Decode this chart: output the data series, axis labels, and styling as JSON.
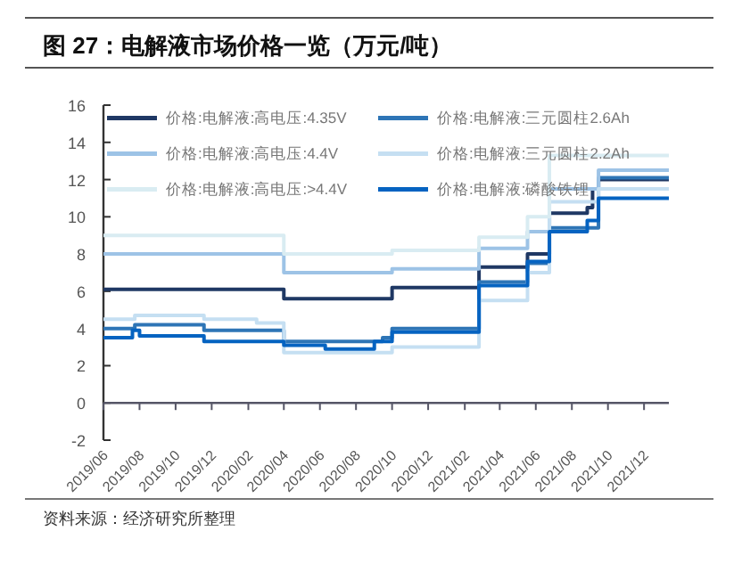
{
  "chart_data": {
    "type": "step",
    "title": "图 27：电解液市场价格一览（万元/吨）",
    "annotations": [
      "资料来源：经济研究所整理"
    ],
    "legend": "top left",
    "xlim": [
      "2019-06-01",
      "2022-01-12"
    ],
    "xticks": [
      {
        "value": "2019-06-01",
        "label": "2019/06"
      },
      {
        "value": "2019-08-01",
        "label": "2019/08"
      },
      {
        "value": "2019-10-01",
        "label": "2019/10"
      },
      {
        "value": "2019-12-01",
        "label": "2019/12"
      },
      {
        "value": "2020-02-01",
        "label": "2020/02"
      },
      {
        "value": "2020-04-01",
        "label": "2020/04"
      },
      {
        "value": "2020-06-01",
        "label": "2020/06"
      },
      {
        "value": "2020-08-01",
        "label": "2020/08"
      },
      {
        "value": "2020-10-01",
        "label": "2020/10"
      },
      {
        "value": "2020-12-01",
        "label": "2020/12"
      },
      {
        "value": "2021-02-01",
        "label": "2021/02"
      },
      {
        "value": "2021-04-01",
        "label": "2021/04"
      },
      {
        "value": "2021-06-01",
        "label": "2021/06"
      },
      {
        "value": "2021-08-01",
        "label": "2021/08"
      },
      {
        "value": "2021-10-01",
        "label": "2021/10"
      },
      {
        "value": "2021-12-01",
        "label": "2021/12"
      }
    ],
    "ylim": [
      -2,
      16
    ],
    "yticks": [
      -2,
      0,
      2,
      4,
      6,
      8,
      10,
      12,
      14,
      16
    ],
    "series": [
      {
        "name": "价格:电解液:高电压:4.35V",
        "color": "#1f3864",
        "x": [
          "2019-06-01",
          "2020-04-01",
          "2020-10-01",
          "2021-02-25",
          "2021-05-18",
          "2021-06-24",
          "2021-08-27",
          "2021-09-05",
          "2021-09-15",
          "2022-01-12"
        ],
        "values": [
          6.1,
          5.6,
          6.2,
          7.3,
          8.0,
          10.2,
          10.5,
          11.5,
          12.0,
          12.0
        ]
      },
      {
        "name": "价格:电解液:三元圆柱2.6Ah",
        "color": "#2e75b6",
        "x": [
          "2019-06-01",
          "2019-07-24",
          "2019-11-18",
          "2020-04-01",
          "2020-09-15",
          "2020-10-01",
          "2021-02-25",
          "2021-05-18",
          "2021-06-24",
          "2021-09-15",
          "2022-01-12"
        ],
        "values": [
          4.0,
          4.2,
          3.9,
          3.3,
          3.5,
          4.0,
          6.5,
          7.5,
          9.4,
          12.1,
          12.1
        ]
      },
      {
        "name": "价格:电解液:高电压:4.4V",
        "color": "#9dc3e6",
        "x": [
          "2019-06-01",
          "2020-04-01",
          "2020-10-01",
          "2021-02-25",
          "2021-05-18",
          "2021-06-24",
          "2021-09-15",
          "2022-01-12"
        ],
        "values": [
          8.0,
          7.0,
          7.2,
          8.3,
          9.2,
          11.5,
          12.5,
          12.5
        ]
      },
      {
        "name": "价格:电解液:三元圆柱2.2Ah",
        "color": "#c5dff2",
        "x": [
          "2019-06-01",
          "2019-07-24",
          "2019-11-18",
          "2020-02-15",
          "2020-04-01",
          "2020-10-01",
          "2021-02-25",
          "2021-05-18",
          "2021-06-24",
          "2021-09-15",
          "2022-01-12"
        ],
        "values": [
          4.5,
          4.7,
          4.5,
          4.3,
          2.7,
          3.0,
          5.5,
          7.0,
          10.8,
          11.5,
          11.5
        ]
      },
      {
        "name": "价格:电解液:高电压:>4.4V",
        "color": "#d9ecf2",
        "x": [
          "2019-06-01",
          "2020-04-01",
          "2020-10-01",
          "2021-02-25",
          "2021-05-18",
          "2021-06-24",
          "2022-01-12"
        ],
        "values": [
          9.0,
          8.0,
          8.2,
          8.9,
          10.0,
          13.3,
          13.3
        ]
      },
      {
        "name": "价格:电解液:磷酸铁锂",
        "color": "#0563c1",
        "x": [
          "2019-06-01",
          "2019-07-20",
          "2019-08-01",
          "2019-11-18",
          "2020-04-01",
          "2020-06-10",
          "2020-09-01",
          "2020-10-01",
          "2021-02-25",
          "2021-05-18",
          "2021-06-24",
          "2021-08-27",
          "2021-09-15",
          "2022-01-12"
        ],
        "values": [
          3.5,
          3.9,
          3.6,
          3.3,
          3.1,
          2.9,
          3.3,
          3.8,
          6.3,
          7.6,
          9.2,
          9.8,
          11.0,
          11.0
        ]
      }
    ]
  }
}
